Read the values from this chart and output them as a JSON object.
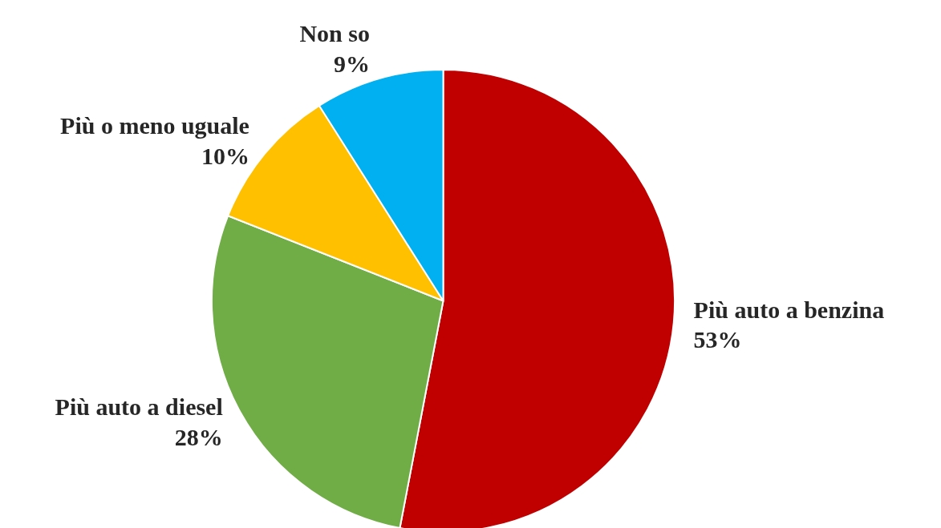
{
  "chart_data": {
    "type": "pie",
    "categories": [
      "Più auto a benzina",
      "Più auto a diesel",
      "Più o meno uguale",
      "Non so"
    ],
    "values": [
      53,
      28,
      10,
      9
    ],
    "colors": [
      "#c00000",
      "#70ad47",
      "#ffc000",
      "#00b0f0"
    ],
    "value_labels": [
      "53%",
      "28%",
      "10%",
      "9%"
    ]
  }
}
